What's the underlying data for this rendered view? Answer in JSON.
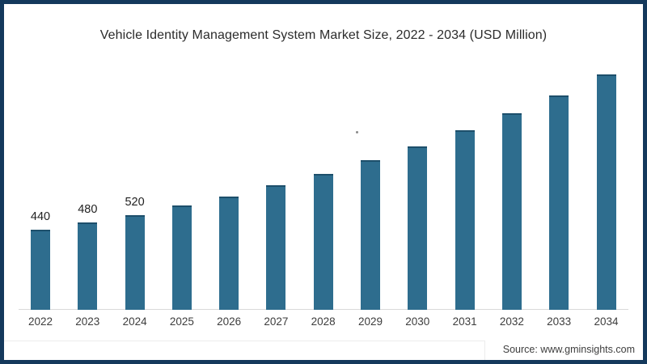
{
  "frame": {
    "border_color": "#14395c",
    "background": "#ffffff"
  },
  "chart_data": {
    "type": "bar",
    "title": "Vehicle Identity Management System Market Size, 2022 - 2034 (USD Million)",
    "categories": [
      "2022",
      "2023",
      "2024",
      "2025",
      "2026",
      "2027",
      "2028",
      "2029",
      "2030",
      "2031",
      "2032",
      "2033",
      "2034"
    ],
    "values": [
      440,
      480,
      520,
      575,
      625,
      685,
      750,
      825,
      900,
      990,
      1080,
      1180,
      1295
    ],
    "data_labels": {
      "2022": "440",
      "2023": "480",
      "2024": "520"
    },
    "xlabel": "",
    "ylabel": "",
    "ylim": [
      0,
      1400
    ],
    "grid": "off",
    "legend": "none",
    "bar_color": "#2e6d8e",
    "bar_top_edge_color": "#1d4f6b",
    "axis_line_color": "#d9d9d9",
    "title_color": "#2b2b2b",
    "tick_label_color": "#3d3d3d",
    "data_label_color": "#1f1f1f"
  },
  "source": {
    "label": "Source: www.gminsights.com"
  }
}
